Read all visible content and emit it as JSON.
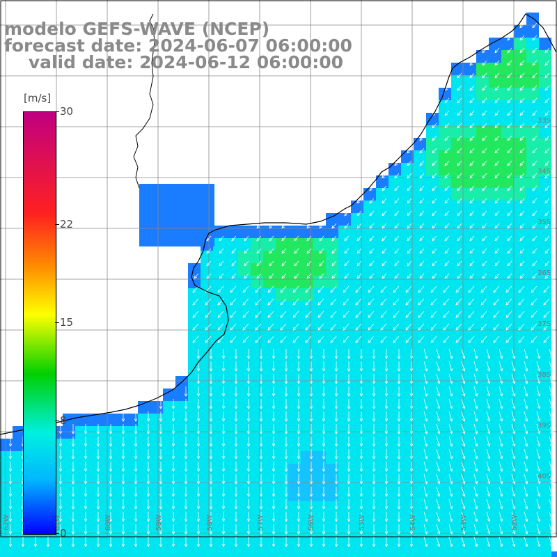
{
  "title": {
    "line1": "modelo GEFS-WAVE (NCEP)",
    "line2": "forecast date: 2024-06-07 06:00:00",
    "line3": "    valid date: 2024-06-12 06:00:00"
  },
  "colorbar": {
    "unit": "[m/s]",
    "ticks": [
      "30",
      "22",
      "15",
      "8",
      "0"
    ],
    "tick_values": [
      30,
      22,
      15,
      8,
      0
    ],
    "colors": [
      "#c00080",
      "#ff2020",
      "#ff9000",
      "#ffff00",
      "#00d000",
      "#00f0e0",
      "#00b8ff",
      "#0000ff"
    ]
  },
  "map": {
    "lat_labels": [
      "33S",
      "34S",
      "35S",
      "36S",
      "37S",
      "38S",
      "39S",
      "40S"
    ],
    "lon_labels": [
      "62W",
      "61W",
      "60W",
      "59W",
      "58W",
      "57W",
      "56W",
      "55W",
      "54W",
      "53W",
      "52W"
    ],
    "land_color": "#ffffff",
    "ocean_color": "#00e6f0",
    "coast_water_color": "#1a7cff",
    "wind_arrow_color": "#ffffff",
    "grid_color": "#888888"
  }
}
